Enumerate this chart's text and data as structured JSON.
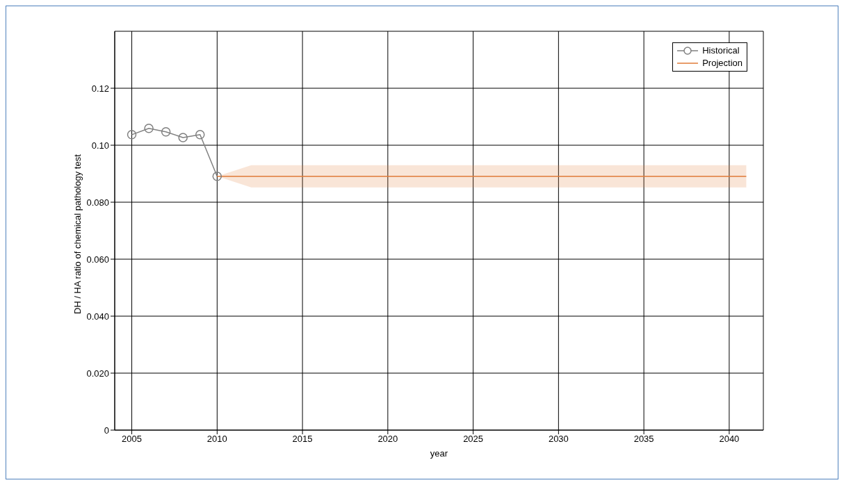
{
  "chart_data": {
    "type": "line",
    "xlabel": "year",
    "ylabel": "DH / HA ratio of chemical pathology test",
    "xlim": [
      2004,
      2042
    ],
    "xticks": [
      2005,
      2010,
      2015,
      2020,
      2025,
      2030,
      2035,
      2040
    ],
    "ylim": [
      0,
      0.14
    ],
    "yticks": [
      0,
      {
        "value": 0.02,
        "label": "0.020"
      },
      {
        "value": 0.04,
        "label": "0.040"
      },
      {
        "value": 0.06,
        "label": "0.060"
      },
      {
        "value": 0.08,
        "label": "0.080"
      },
      {
        "value": 0.1,
        "label": "0.10"
      },
      {
        "value": 0.12,
        "label": "0.12"
      }
    ],
    "grid": true,
    "legend": "top right",
    "series": [
      {
        "name": "Historical",
        "color": "#808080",
        "marker": "circle",
        "x": [
          2005,
          2006,
          2007,
          2008,
          2009,
          2010
        ],
        "values": [
          0.1037,
          0.1059,
          0.1047,
          0.1027,
          0.1037,
          0.0891
        ]
      },
      {
        "name": "Projection",
        "color": "#e07b39",
        "marker": "none",
        "x": [
          2010,
          2012,
          2041
        ],
        "values": [
          0.0891,
          0.0891,
          0.0891
        ],
        "lower": [
          0.0891,
          0.0852,
          0.0852
        ],
        "upper": [
          0.0891,
          0.093,
          0.093
        ]
      }
    ]
  }
}
